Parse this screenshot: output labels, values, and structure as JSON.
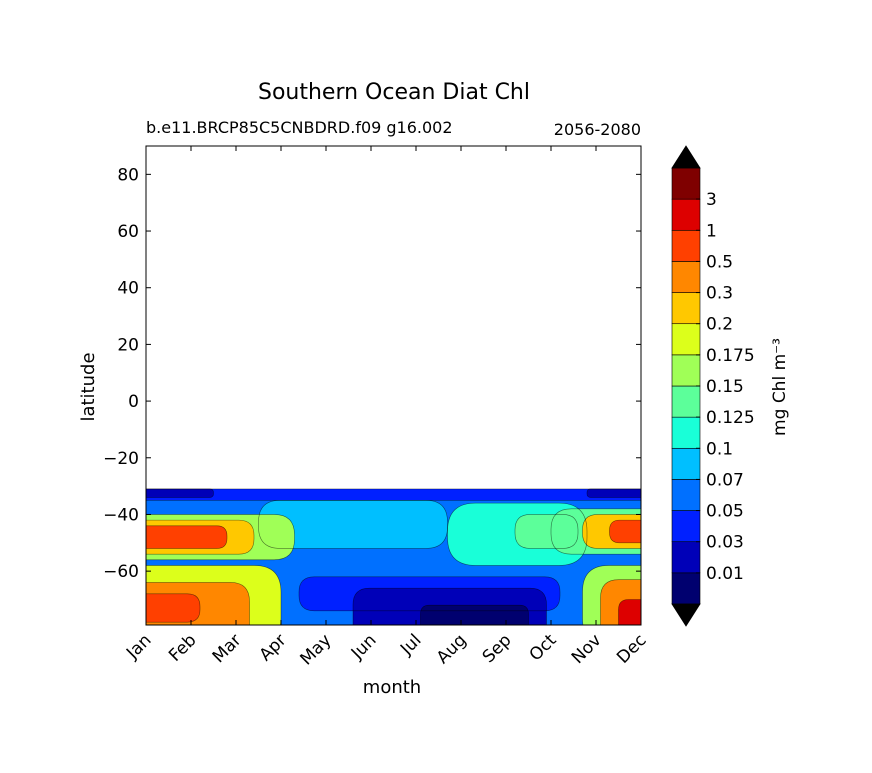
{
  "chart_data": {
    "type": "contourf",
    "title": "Southern Ocean Diat Chl",
    "subtitle_left": "b.e11.BRCP85C5CNBDRD.f09 g16.002",
    "subtitle_right": "2056-2080",
    "xlabel": "month",
    "ylabel": "latitude",
    "x_ticks": [
      "Jan",
      "Feb",
      "Mar",
      "Apr",
      "May",
      "Jun",
      "Jul",
      "Aug",
      "Sep",
      "Oct",
      "Nov",
      "Dec"
    ],
    "y_ticks": [
      80,
      60,
      40,
      20,
      0,
      -20,
      -40,
      -60
    ],
    "y_tick_labels": [
      "80",
      "60",
      "40",
      "20",
      "0",
      "−20",
      "−40",
      "−60"
    ],
    "xlim": [
      0,
      11
    ],
    "ylim": [
      -79,
      90
    ],
    "data_lat_range": [
      -79,
      -31
    ],
    "colorbar": {
      "label": "mg Chl m⁻³",
      "levels": [
        "0.01",
        "0.03",
        "0.05",
        "0.07",
        "0.1",
        "0.125",
        "0.15",
        "0.175",
        "0.2",
        "0.3",
        "0.5",
        "1",
        "3"
      ],
      "colors": [
        "#00006f",
        "#0000b8",
        "#0020ff",
        "#0070ff",
        "#00bfff",
        "#19ffd8",
        "#5cff9a",
        "#a0ff57",
        "#dcff1b",
        "#ffc800",
        "#ff8700",
        "#ff4000",
        "#dd0000",
        "#7f0000"
      ],
      "extend": "both",
      "under_color": "#000000",
      "over_color": "#000000"
    },
    "zones": [
      {
        "lat": [
          -79,
          -31
        ],
        "month_range": [
          0,
          11
        ],
        "level": 3,
        "desc": "base"
      },
      {
        "lat": [
          -35,
          -31
        ],
        "month_range": [
          0,
          11
        ],
        "level": 2
      },
      {
        "lat": [
          -34,
          -31
        ],
        "month_range": [
          0,
          1.5
        ],
        "level": 1
      },
      {
        "lat": [
          -34,
          -31
        ],
        "month_range": [
          9.8,
          11
        ],
        "level": 1
      },
      {
        "lat": [
          -52,
          -35
        ],
        "month_range": [
          2.5,
          6.7
        ],
        "level": 4
      },
      {
        "lat": [
          -58,
          -36
        ],
        "month_range": [
          6.7,
          9.8
        ],
        "level": 5
      },
      {
        "lat": [
          -52,
          -40
        ],
        "month_range": [
          8.2,
          9.6
        ],
        "level": 6
      },
      {
        "lat": [
          -74,
          -62
        ],
        "month_range": [
          3.4,
          9.2
        ],
        "level": 2
      },
      {
        "lat": [
          -79,
          -66
        ],
        "month_range": [
          4.6,
          8.9
        ],
        "level": 1
      },
      {
        "lat": [
          -79,
          -72
        ],
        "month_range": [
          6.1,
          8.5
        ],
        "level": 0
      },
      {
        "lat": [
          -56,
          -40
        ],
        "month_range": [
          0,
          3.3
        ],
        "level": 7
      },
      {
        "lat": [
          -54,
          -42
        ],
        "month_range": [
          0,
          2.4
        ],
        "level": 9
      },
      {
        "lat": [
          -52,
          -44
        ],
        "month_range": [
          0,
          1.8
        ],
        "level": 11
      },
      {
        "lat": [
          -79,
          -58
        ],
        "month_range": [
          0,
          3.0
        ],
        "level": 8
      },
      {
        "lat": [
          -79,
          -64
        ],
        "month_range": [
          0,
          2.3
        ],
        "level": 10
      },
      {
        "lat": [
          -78,
          -68
        ],
        "month_range": [
          0,
          1.2
        ],
        "level": 11
      },
      {
        "lat": [
          -54,
          -38
        ],
        "month_range": [
          9.0,
          11
        ],
        "level": 6
      },
      {
        "lat": [
          -52,
          -40
        ],
        "month_range": [
          9.7,
          11
        ],
        "level": 9
      },
      {
        "lat": [
          -50,
          -42
        ],
        "month_range": [
          10.3,
          11
        ],
        "level": 11
      },
      {
        "lat": [
          -79,
          -58
        ],
        "month_range": [
          9.7,
          11
        ],
        "level": 7
      },
      {
        "lat": [
          -79,
          -63
        ],
        "month_range": [
          10.1,
          11
        ],
        "level": 10
      },
      {
        "lat": [
          -79,
          -70
        ],
        "month_range": [
          10.5,
          11
        ],
        "level": 12
      }
    ]
  }
}
